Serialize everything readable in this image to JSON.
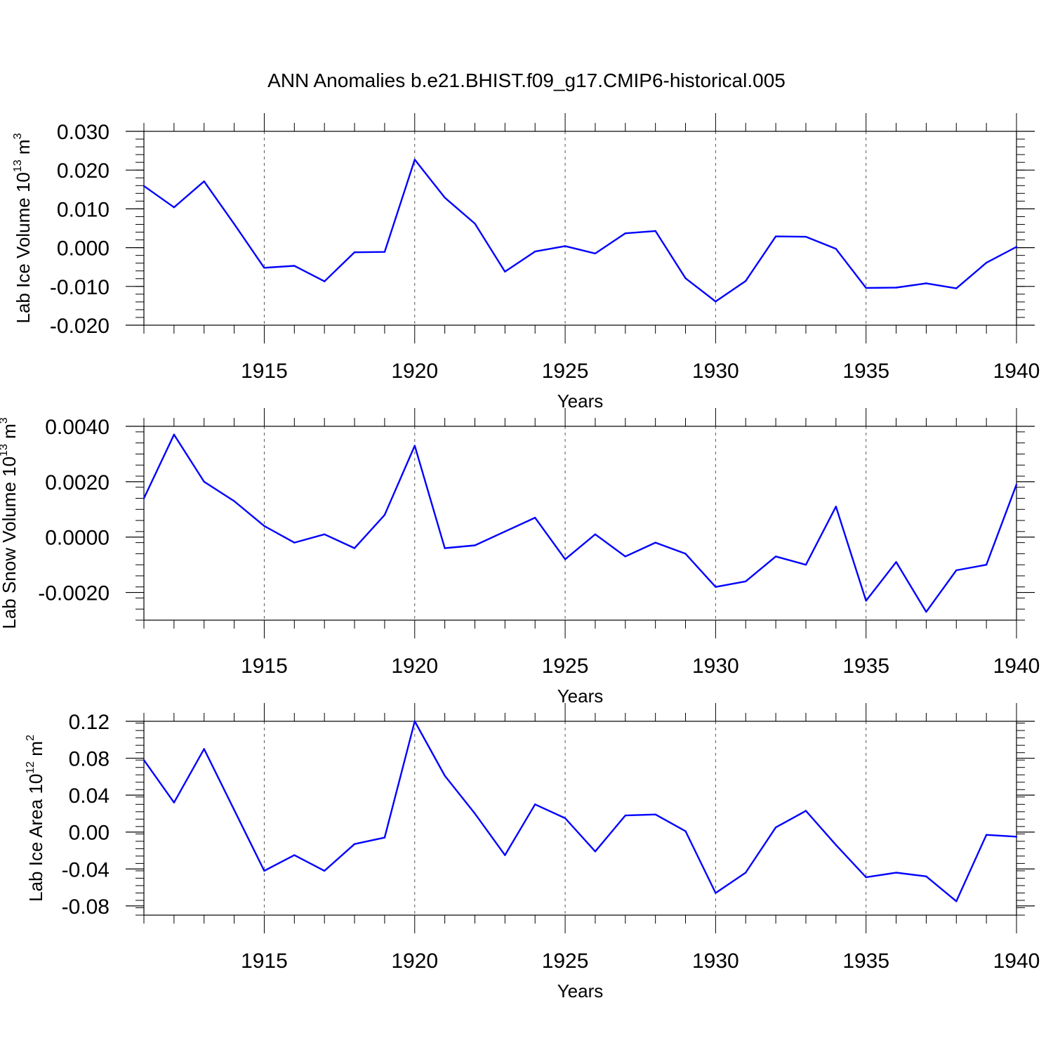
{
  "title": "ANN Anomalies b.e21.BHIST.f09_g17.CMIP6-historical.005",
  "colors": {
    "line": "#0000ff",
    "axis": "#000000",
    "grid": "#555555"
  },
  "chart_data": [
    {
      "type": "line",
      "ylabel_main": "Lab Ice Volume 10",
      "ylabel_exp": "13",
      "ylabel_unit": " m",
      "ylabel_unit_exp": "3",
      "xlabel": "Years",
      "xlim": [
        1911,
        1940
      ],
      "ylim": [
        -0.02,
        0.03
      ],
      "y_ticks": [
        -0.02,
        -0.01,
        0.0,
        0.01,
        0.02,
        0.03
      ],
      "y_tick_labels": [
        "-0.020",
        "-0.010",
        "0.000",
        "0.010",
        "0.020",
        "0.030"
      ],
      "x_ticks": [
        1915,
        1920,
        1925,
        1930,
        1935,
        1940
      ],
      "x_tick_labels": [
        "1915",
        "1920",
        "1925",
        "1930",
        "1935",
        "1940"
      ],
      "grid_x": [
        1915,
        1920,
        1925,
        1930,
        1935
      ],
      "x": [
        1911,
        1912,
        1913,
        1914,
        1915,
        1916,
        1917,
        1918,
        1919,
        1920,
        1921,
        1922,
        1923,
        1924,
        1925,
        1926,
        1927,
        1928,
        1929,
        1930,
        1931,
        1932,
        1933,
        1934,
        1935,
        1936,
        1937,
        1938,
        1939,
        1940
      ],
      "values": [
        0.0159,
        0.0104,
        0.0171,
        0.0061,
        -0.0052,
        -0.0047,
        -0.0087,
        -0.0012,
        -0.0011,
        0.0227,
        0.0129,
        0.0062,
        -0.0062,
        -0.001,
        0.0004,
        -0.0015,
        0.0037,
        0.0043,
        -0.0079,
        -0.0139,
        -0.0086,
        0.0029,
        0.0028,
        -0.0003,
        -0.0104,
        -0.0103,
        -0.0092,
        -0.0105,
        -0.0039,
        0.0002
      ]
    },
    {
      "type": "line",
      "ylabel_main": "Lab Snow Volume 10",
      "ylabel_exp": "13",
      "ylabel_unit": " m",
      "ylabel_unit_exp": "3",
      "xlabel": "Years",
      "xlim": [
        1911,
        1940
      ],
      "ylim": [
        -0.003,
        0.004
      ],
      "y_ticks": [
        -0.002,
        0.0,
        0.002,
        0.004
      ],
      "y_tick_labels": [
        "-0.0020",
        "0.0000",
        "0.0020",
        "0.0040"
      ],
      "x_ticks": [
        1915,
        1920,
        1925,
        1930,
        1935,
        1940
      ],
      "x_tick_labels": [
        "1915",
        "1920",
        "1925",
        "1930",
        "1935",
        "1940"
      ],
      "grid_x": [
        1915,
        1920,
        1925,
        1930,
        1935
      ],
      "x": [
        1911,
        1912,
        1913,
        1914,
        1915,
        1916,
        1917,
        1918,
        1919,
        1920,
        1921,
        1922,
        1923,
        1924,
        1925,
        1926,
        1927,
        1928,
        1929,
        1930,
        1931,
        1932,
        1933,
        1934,
        1935,
        1936,
        1937,
        1938,
        1939,
        1940
      ],
      "values": [
        0.0014,
        0.0037,
        0.002,
        0.0013,
        0.0004,
        -0.0002,
        0.0001,
        -0.0004,
        0.0008,
        0.0033,
        -0.0004,
        -0.0003,
        0.0002,
        0.0007,
        -0.0008,
        0.0001,
        -0.0007,
        -0.0002,
        -0.0006,
        -0.0018,
        -0.0016,
        -0.0007,
        -0.001,
        0.0011,
        -0.0023,
        -0.0009,
        -0.0027,
        -0.0012,
        -0.001,
        0.0019
      ]
    },
    {
      "type": "line",
      "ylabel_main": "Lab Ice Area 10",
      "ylabel_exp": "12",
      "ylabel_unit": " m",
      "ylabel_unit_exp": "2",
      "xlabel": "Years",
      "xlim": [
        1911,
        1940
      ],
      "ylim": [
        -0.09,
        0.12
      ],
      "y_ticks": [
        -0.08,
        -0.04,
        0.0,
        0.04,
        0.08,
        0.12
      ],
      "y_tick_labels": [
        "-0.08",
        "-0.04",
        "0.00",
        "0.04",
        "0.08",
        "0.12"
      ],
      "x_ticks": [
        1915,
        1920,
        1925,
        1930,
        1935,
        1940
      ],
      "x_tick_labels": [
        "1915",
        "1920",
        "1925",
        "1930",
        "1935",
        "1940"
      ],
      "grid_x": [
        1915,
        1920,
        1925,
        1930,
        1935
      ],
      "x": [
        1911,
        1912,
        1913,
        1914,
        1915,
        1916,
        1917,
        1918,
        1919,
        1920,
        1921,
        1922,
        1923,
        1924,
        1925,
        1926,
        1927,
        1928,
        1929,
        1930,
        1931,
        1932,
        1933,
        1934,
        1935,
        1936,
        1937,
        1938,
        1939,
        1940
      ],
      "values": [
        0.078,
        0.032,
        0.09,
        0.024,
        -0.042,
        -0.025,
        -0.042,
        -0.013,
        -0.006,
        0.12,
        0.061,
        0.02,
        -0.025,
        0.03,
        0.015,
        -0.021,
        0.018,
        0.019,
        0.001,
        -0.066,
        -0.044,
        0.005,
        0.023,
        -0.014,
        -0.049,
        -0.044,
        -0.048,
        -0.075,
        -0.003,
        -0.005
      ]
    }
  ]
}
